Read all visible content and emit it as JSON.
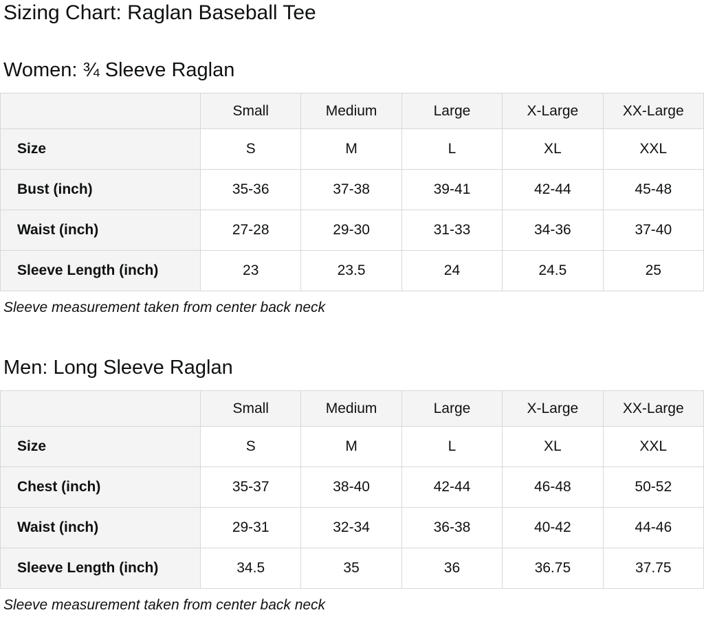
{
  "page": {
    "title": "Sizing Chart: Raglan Baseball Tee"
  },
  "colors": {
    "header_bg": "#f4f4f4",
    "cell_bg": "#ffffff",
    "border": "#d5d9d9",
    "text": "#0f1111"
  },
  "women": {
    "heading": "Women: ¾ Sleeve Raglan",
    "note": "Sleeve measurement taken from center back neck",
    "table": {
      "columns": [
        "",
        "Small",
        "Medium",
        "Large",
        "X-Large",
        "XX-Large"
      ],
      "rows": [
        {
          "label": "Size",
          "values": [
            "S",
            "M",
            "L",
            "XL",
            "XXL"
          ]
        },
        {
          "label": "Bust (inch)",
          "values": [
            "35-36",
            "37-38",
            "39-41",
            "42-44",
            "45-48"
          ]
        },
        {
          "label": "Waist (inch)",
          "values": [
            "27-28",
            "29-30",
            "31-33",
            "34-36",
            "37-40"
          ]
        },
        {
          "label": "Sleeve Length (inch)",
          "values": [
            "23",
            "23.5",
            "24",
            "24.5",
            "25"
          ]
        }
      ]
    }
  },
  "men": {
    "heading": "Men: Long Sleeve Raglan",
    "note": "Sleeve measurement taken from center back neck",
    "table": {
      "columns": [
        "",
        "Small",
        "Medium",
        "Large",
        "X-Large",
        "XX-Large"
      ],
      "rows": [
        {
          "label": "Size",
          "values": [
            "S",
            "M",
            "L",
            "XL",
            "XXL"
          ]
        },
        {
          "label": "Chest (inch)",
          "values": [
            "35-37",
            "38-40",
            "42-44",
            "46-48",
            "50-52"
          ]
        },
        {
          "label": "Waist (inch)",
          "values": [
            "29-31",
            "32-34",
            "36-38",
            "40-42",
            "44-46"
          ]
        },
        {
          "label": "Sleeve Length (inch)",
          "values": [
            "34.5",
            "35",
            "36",
            "36.75",
            "37.75"
          ]
        }
      ]
    }
  }
}
